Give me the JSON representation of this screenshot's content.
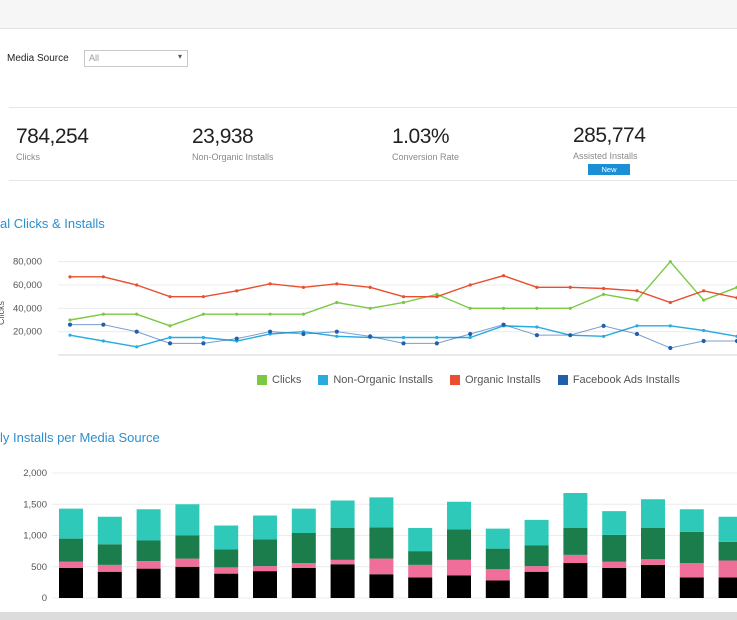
{
  "filter": {
    "label": "Media Source",
    "value": "All"
  },
  "kpis": [
    {
      "value": "784,254",
      "label": "Clicks"
    },
    {
      "value": "23,938",
      "label": "Non-Organic Installs"
    },
    {
      "value": "1.03%",
      "label": "Conversion Rate"
    },
    {
      "value": "285,774",
      "label": "Assisted Installs",
      "badge": "New"
    }
  ],
  "colors": {
    "clicks": "#7ac943",
    "non_organic": "#29abe2",
    "organic": "#e84e2f",
    "facebook": "#1f5fae",
    "stack_top": "#2ec9b8",
    "stack_mid": "#1a7d4b",
    "stack_pink": "#ef6f9a"
  },
  "chart_data": [
    {
      "type": "line",
      "title": "al Clicks & Installs",
      "ylabel": "Clicks",
      "ylim": [
        0,
        90000
      ],
      "y_ticks": [
        "80,000",
        "60,000",
        "40,000",
        "20,000"
      ],
      "y_tick_values": [
        80000,
        60000,
        40000,
        20000
      ],
      "series": [
        {
          "key": "clicks",
          "name": "Clicks",
          "values": [
            30000,
            35000,
            35000,
            25000,
            35000,
            35000,
            35000,
            35000,
            45000,
            40000,
            45000,
            52000,
            40000,
            40000,
            40000,
            40000,
            52000,
            47000,
            80000,
            47000,
            58000
          ]
        },
        {
          "key": "non_organic",
          "name": "Non-Organic Installs",
          "values": [
            17000,
            12000,
            7000,
            15000,
            15000,
            12000,
            18000,
            20000,
            16000,
            15000,
            15000,
            15000,
            15000,
            25000,
            24000,
            17000,
            16000,
            25000,
            25000,
            21000,
            16000
          ]
        },
        {
          "key": "organic",
          "name": "Organic Installs",
          "values": [
            67000,
            67000,
            60000,
            50000,
            50000,
            55000,
            61000,
            58000,
            61000,
            58000,
            50000,
            50000,
            60000,
            68000,
            58000,
            58000,
            57000,
            55000,
            45000,
            55000,
            49000
          ]
        },
        {
          "key": "facebook",
          "name": "Facebook Ads Installs",
          "values": [
            26000,
            26000,
            20000,
            10000,
            10000,
            14000,
            20000,
            18000,
            20000,
            16000,
            10000,
            10000,
            18000,
            26000,
            17000,
            17000,
            25000,
            18000,
            6000,
            12000,
            12000
          ]
        }
      ]
    },
    {
      "type": "bar",
      "title": "ly Installs per Media Source",
      "ylim": [
        0,
        2000
      ],
      "y_ticks": [
        "2,000",
        "1,500",
        "1,000",
        "500",
        "0"
      ],
      "y_tick_values": [
        2000,
        1500,
        1000,
        500,
        0
      ],
      "series": [
        {
          "key": "stack_blue",
          "values": [
            480,
            420,
            470,
            500,
            390,
            430,
            480,
            540,
            380,
            330,
            360,
            280,
            420,
            560,
            480,
            530,
            330,
            330
          ]
        },
        {
          "key": "stack_pink",
          "values": [
            100,
            110,
            120,
            130,
            100,
            80,
            80,
            70,
            250,
            200,
            250,
            180,
            90,
            130,
            100,
            90,
            230,
            270
          ]
        },
        {
          "key": "stack_mid",
          "values": [
            370,
            330,
            330,
            370,
            290,
            430,
            480,
            510,
            500,
            220,
            490,
            330,
            330,
            430,
            430,
            500,
            500,
            300
          ]
        },
        {
          "key": "stack_top",
          "values": [
            480,
            440,
            500,
            500,
            380,
            380,
            390,
            440,
            480,
            370,
            440,
            320,
            410,
            560,
            380,
            460,
            360,
            400
          ]
        }
      ]
    }
  ]
}
